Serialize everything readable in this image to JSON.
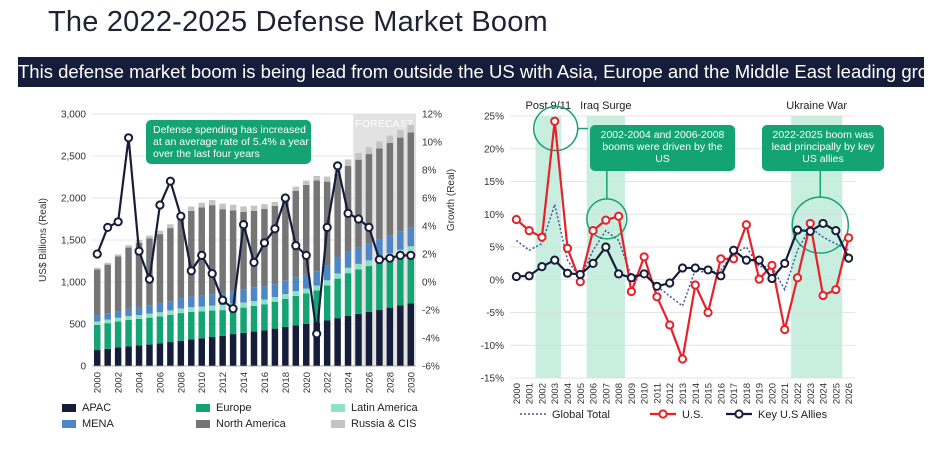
{
  "header": {
    "title": "The 2022-2025 Defense Market Boom",
    "subtitle": "This defense market boom is being lead from outside the US with Asia, Europe and the Middle East leading growth"
  },
  "colors": {
    "banner": "#161d3b",
    "APAC": "#161d3b",
    "Europe": "#14a373",
    "Latin America": "#8ee0c6",
    "MENA": "#4f86c6",
    "North America": "#757575",
    "Russia & CIS": "#c4c4c4",
    "growth_line": "#161d3b",
    "us_line": "#e8202a",
    "allies_line": "#161d3b",
    "global_line": "#3d5aa0",
    "highlight": "#c7eedf",
    "callout": "#14a373"
  },
  "chart_data": [
    {
      "type": "bar",
      "stacked": true,
      "categories": [
        "2000",
        "2001",
        "2002",
        "2003",
        "2004",
        "2005",
        "2006",
        "2007",
        "2008",
        "2009",
        "2010",
        "2011",
        "2012",
        "2013",
        "2014",
        "2015",
        "2016",
        "2017",
        "2018",
        "2019",
        "2020",
        "2021",
        "2022",
        "2023",
        "2024",
        "2025",
        "2026",
        "2027",
        "2028",
        "2029",
        "2030"
      ],
      "x_tick_labels": [
        "2000",
        "2002",
        "2004",
        "2006",
        "2008",
        "2010",
        "2012",
        "2014",
        "2016",
        "2018",
        "2020",
        "2022",
        "2024",
        "2026",
        "2028",
        "2030"
      ],
      "series": [
        {
          "name": "APAC",
          "values": [
            190,
            205,
            220,
            235,
            245,
            255,
            270,
            285,
            300,
            315,
            330,
            345,
            360,
            380,
            395,
            410,
            425,
            445,
            465,
            485,
            500,
            520,
            545,
            570,
            595,
            620,
            645,
            670,
            695,
            720,
            745
          ]
        },
        {
          "name": "Europe",
          "values": [
            300,
            305,
            310,
            315,
            315,
            320,
            320,
            325,
            330,
            330,
            320,
            315,
            305,
            300,
            300,
            305,
            310,
            320,
            335,
            350,
            365,
            380,
            415,
            470,
            510,
            530,
            545,
            560,
            575,
            590,
            605
          ]
        },
        {
          "name": "Latin America",
          "values": [
            40,
            42,
            44,
            45,
            47,
            48,
            50,
            52,
            55,
            56,
            58,
            60,
            62,
            62,
            60,
            58,
            56,
            55,
            55,
            56,
            56,
            58,
            60,
            62,
            64,
            66,
            68,
            70,
            72,
            74,
            76
          ]
        },
        {
          "name": "MENA",
          "values": [
            70,
            75,
            80,
            85,
            90,
            95,
            100,
            110,
            120,
            125,
            130,
            135,
            140,
            150,
            160,
            165,
            160,
            155,
            160,
            165,
            165,
            170,
            175,
            185,
            195,
            200,
            205,
            210,
            215,
            220,
            225
          ]
        },
        {
          "name": "North America",
          "values": [
            550,
            580,
            650,
            730,
            770,
            800,
            830,
            870,
            950,
            1020,
            1050,
            1060,
            1000,
            960,
            920,
            910,
            920,
            930,
            980,
            1030,
            1070,
            1080,
            1000,
            1000,
            1020,
            1040,
            1060,
            1080,
            1100,
            1115,
            1130
          ]
        },
        {
          "name": "Russia & CIS",
          "values": [
            20,
            22,
            25,
            28,
            32,
            35,
            40,
            45,
            50,
            52,
            55,
            60,
            65,
            68,
            65,
            60,
            55,
            50,
            48,
            50,
            52,
            55,
            60,
            70,
            75,
            80,
            82,
            84,
            86,
            88,
            90
          ]
        }
      ],
      "growth_line": {
        "name": "Growth (Real)",
        "values": [
          2.0,
          3.9,
          4.3,
          10.3,
          2.2,
          0.2,
          5.5,
          7.2,
          4.7,
          0.8,
          1.9,
          0.6,
          -1.3,
          -1.9,
          4.1,
          1.4,
          2.8,
          3.8,
          6.0,
          2.6,
          1.9,
          -3.7,
          3.9,
          8.3,
          4.9,
          4.5,
          3.9,
          1.6,
          1.7,
          1.9,
          1.9
        ]
      },
      "xlabel": "",
      "ylabel": "US$ Billions (Real)",
      "ylabel_right": "Growth (Real)",
      "ylim": [
        0,
        3000
      ],
      "yticks_left": [
        "0",
        "500",
        "1,000",
        "1,500",
        "2,000",
        "2,500",
        "3,000"
      ],
      "ylim_right": [
        -6,
        12
      ],
      "yticks_right": [
        "-6%",
        "-4%",
        "-2%",
        "0%",
        "2%",
        "4%",
        "6%",
        "8%",
        "10%",
        "12%"
      ],
      "forecast_label": "FORECAST",
      "forecast_start": "2025",
      "annotation": {
        "lines": [
          "Defense spending has increased",
          "at an average rate of 5.4% a year",
          "over the last four years"
        ]
      },
      "legend": {
        "position": "bottom",
        "entries": [
          "APAC",
          "Europe",
          "Latin America",
          "MENA",
          "North America",
          "Russia & CIS"
        ]
      }
    },
    {
      "type": "line",
      "x": [
        "2000",
        "2001",
        "2002",
        "2003",
        "2004",
        "2005",
        "2006",
        "2007",
        "2008",
        "2009",
        "2010",
        "2011",
        "2012",
        "2013",
        "2014",
        "2015",
        "2016",
        "2017",
        "2018",
        "2019",
        "2020",
        "2021",
        "2022",
        "2023",
        "2024",
        "2025",
        "2026"
      ],
      "series": [
        {
          "name": "Global Total",
          "style": "dotted",
          "values": [
            6.0,
            4.5,
            5.5,
            11.5,
            3.0,
            0.2,
            4.5,
            7.5,
            6.0,
            0.5,
            1.0,
            -1.0,
            -2.5,
            -4.0,
            1.5,
            1.0,
            1.5,
            4.0,
            5.0,
            2.0,
            2.0,
            -1.5,
            4.5,
            8.0,
            6.5,
            5.5,
            4.5
          ]
        },
        {
          "name": "U.S.",
          "style": "solid",
          "values": [
            9.2,
            7.5,
            6.5,
            24.2,
            4.8,
            -0.3,
            7.5,
            9.1,
            9.7,
            -1.8,
            3.5,
            -2.6,
            -6.9,
            -12.1,
            -0.8,
            -5.0,
            3.2,
            3.2,
            8.4,
            0.1,
            2.2,
            -7.6,
            0.3,
            8.6,
            -2.4,
            -1.5,
            6.4
          ]
        },
        {
          "name": "Key U.S Allies",
          "style": "solid",
          "values": [
            0.5,
            0.6,
            2.0,
            3.0,
            1.0,
            0.8,
            2.5,
            5.0,
            0.9,
            0.3,
            0.9,
            -1.0,
            -0.5,
            1.8,
            1.8,
            1.5,
            0.6,
            4.5,
            3.0,
            3.0,
            0.2,
            2.5,
            7.6,
            7.4,
            8.6,
            7.5,
            3.3
          ]
        }
      ],
      "xlabel": "",
      "ylabel": "",
      "ylim": [
        -15,
        25
      ],
      "yticks": [
        "-15%",
        "-10%",
        "-5%",
        "0%",
        "5%",
        "10%",
        "15%",
        "20%",
        "25%"
      ],
      "highlights": [
        {
          "label": "Post 9/11",
          "range": [
            "2002",
            "2003"
          ]
        },
        {
          "label": "Iraq Surge",
          "range": [
            "2006",
            "2008"
          ]
        },
        {
          "label": "Ukraine War",
          "range": [
            "2022",
            "2025"
          ]
        }
      ],
      "annotations": [
        {
          "lines": [
            "2002-2004 and 2006-2008",
            "booms were driven by the",
            "US"
          ]
        },
        {
          "lines": [
            "2022-2025 boom was",
            "lead principally by key",
            "US allies"
          ]
        }
      ],
      "legend": {
        "position": "bottom",
        "entries": [
          "Global Total",
          "U.S.",
          "Key U.S Allies"
        ]
      }
    }
  ]
}
